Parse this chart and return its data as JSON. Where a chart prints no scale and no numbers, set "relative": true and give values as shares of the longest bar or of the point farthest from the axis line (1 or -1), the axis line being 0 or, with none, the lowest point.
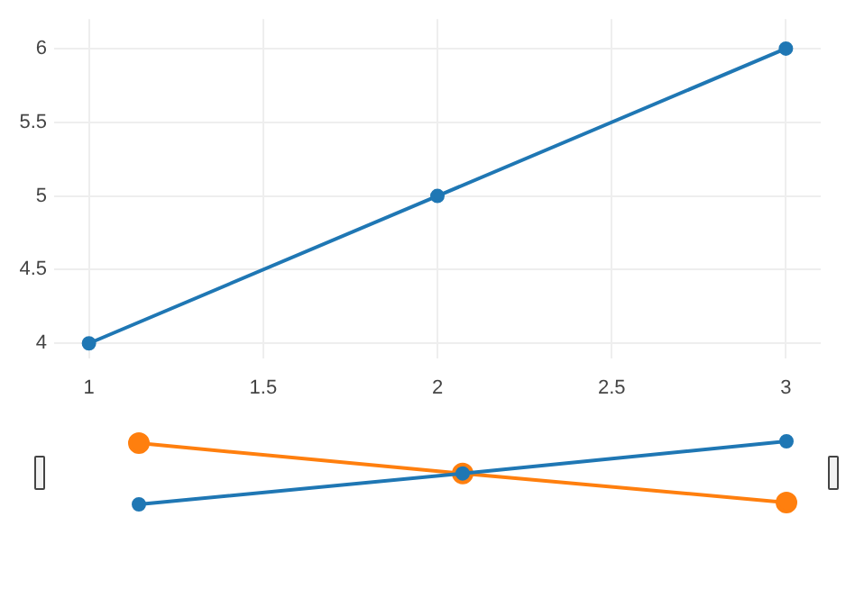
{
  "chart_data": [
    {
      "type": "line",
      "x": [
        1,
        2,
        3
      ],
      "series": [
        {
          "color": "#1f77b4",
          "values": [
            4,
            5,
            6
          ]
        }
      ],
      "xlim": [
        0.9,
        3.1
      ],
      "xticks": [
        1,
        1.5,
        2,
        2.5,
        3
      ],
      "ylim": [
        3.9,
        6.2
      ],
      "yticks": [
        4,
        4.5,
        5,
        5.5,
        6
      ],
      "grid": true,
      "legend": false,
      "marker": "circle",
      "line_style": "solid"
    },
    {
      "type": "line",
      "relative": true,
      "categories": [
        null,
        null,
        null
      ],
      "series": [
        {
          "color": "#1f77b4",
          "values": [
            0,
            0.49,
            1
          ]
        },
        {
          "color": "#ff7f0e",
          "values": [
            0.97,
            0.49,
            0.03
          ]
        }
      ],
      "tick_labels": false,
      "grid": false,
      "legend": false,
      "marker": "circle",
      "line_style": "solid"
    }
  ]
}
